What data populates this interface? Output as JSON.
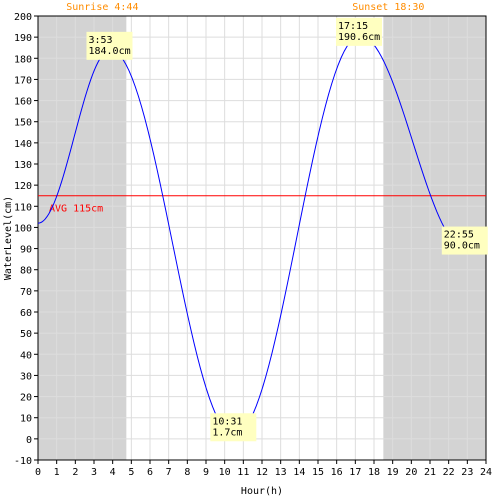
{
  "chart_data": {
    "type": "line",
    "xlabel": "Hour(h)",
    "ylabel": "WaterLevel(cm)",
    "xlim": [
      0,
      24
    ],
    "ylim": [
      -10,
      200
    ],
    "x_ticks": [
      0,
      1,
      2,
      3,
      4,
      5,
      6,
      7,
      8,
      9,
      10,
      11,
      12,
      13,
      14,
      15,
      16,
      17,
      18,
      19,
      20,
      21,
      22,
      23,
      24
    ],
    "y_ticks": [
      -10,
      0,
      10,
      20,
      30,
      40,
      50,
      60,
      70,
      80,
      90,
      100,
      110,
      120,
      130,
      140,
      150,
      160,
      170,
      180,
      190,
      200
    ],
    "grid": true,
    "sunrise": {
      "label": "Sunrise 4:44",
      "hour": 4.733
    },
    "sunset": {
      "label": "Sunset 18:30",
      "hour": 18.5
    },
    "average": {
      "label": "AVG 115cm",
      "value": 115
    },
    "series": [
      {
        "x": [
          0,
          3.883,
          10.517,
          17.25,
          22.917,
          24
        ],
        "y": [
          102,
          184.0,
          1.7,
          190.6,
          90.0,
          96
        ]
      }
    ],
    "annotations": [
      {
        "time": "3:53",
        "level": "184.0cm",
        "x": 3.883,
        "y": 184.0
      },
      {
        "time": "10:31",
        "level": "1.7cm",
        "x": 10.517,
        "y": 1.7
      },
      {
        "time": "17:15",
        "level": "190.6cm",
        "x": 17.25,
        "y": 190.6
      },
      {
        "time": "22:55",
        "level": "90.0cm",
        "x": 22.917,
        "y": 90.0
      }
    ],
    "colors": {
      "line": "#0000ff",
      "night_band": "#d3d3d3",
      "average": "#ff0000",
      "sun_text": "#ff8c00",
      "annotation_bg": "#ffffc0",
      "grid": "#dddddd"
    }
  }
}
